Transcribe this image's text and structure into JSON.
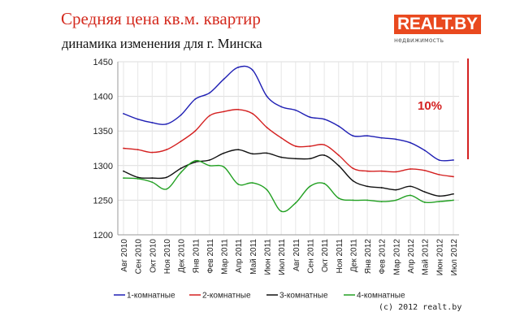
{
  "header": {
    "title": "Средняя цена кв.м. квартир",
    "subtitle": "динамика изменения для г. Минска"
  },
  "logo": {
    "name": "REALT.BY",
    "tagline": "недвижимость",
    "color": "#e9491f"
  },
  "copyright": "(c) 2012 realt.by",
  "chart_data": {
    "type": "line",
    "ylim": [
      1200,
      1450
    ],
    "yticks": [
      1200,
      1250,
      1300,
      1350,
      1400,
      1450
    ],
    "grid": true,
    "legend_position": "bottom",
    "x": [
      "Авг 2010",
      "Сен 2010",
      "Окт 2010",
      "Ноя 2010",
      "Дек 2010",
      "Янв 2011",
      "Фев 2011",
      "Мар 2011",
      "Апр 2011",
      "Май 2011",
      "Июн 2011",
      "Июл 2011",
      "Авг 2011",
      "Сен 2011",
      "Окт 2011",
      "Ноя 2011",
      "Дек 2011",
      "Янв 2012",
      "Фев 2012",
      "Мар 2012",
      "Апр 2012",
      "Май 2012",
      "Июн 2012",
      "Июл 2012"
    ],
    "series": [
      {
        "name": "1-комнатные",
        "color": "#1f1fb4",
        "values": [
          1375,
          1367,
          1362,
          1360,
          1373,
          1396,
          1405,
          1425,
          1442,
          1438,
          1400,
          1385,
          1380,
          1370,
          1367,
          1357,
          1343,
          1343,
          1340,
          1338,
          1333,
          1322,
          1308,
          1308
        ]
      },
      {
        "name": "2-комнатные",
        "color": "#d42020",
        "values": [
          1325,
          1323,
          1319,
          1323,
          1335,
          1350,
          1372,
          1378,
          1381,
          1375,
          1355,
          1340,
          1328,
          1328,
          1330,
          1315,
          1296,
          1292,
          1292,
          1291,
          1295,
          1293,
          1287,
          1284
        ]
      },
      {
        "name": "3-комнатные",
        "color": "#111111",
        "values": [
          1292,
          1283,
          1282,
          1283,
          1296,
          1305,
          1308,
          1318,
          1323,
          1317,
          1318,
          1312,
          1310,
          1310,
          1315,
          1300,
          1278,
          1270,
          1268,
          1265,
          1270,
          1262,
          1256,
          1259
        ]
      },
      {
        "name": "4-комнатные",
        "color": "#22a022",
        "values": [
          1282,
          1281,
          1276,
          1266,
          1290,
          1307,
          1300,
          1298,
          1273,
          1275,
          1265,
          1234,
          1246,
          1270,
          1274,
          1253,
          1250,
          1250,
          1248,
          1250,
          1257,
          1247,
          1248,
          1250
        ]
      }
    ],
    "annotation": {
      "text": "10%",
      "color": "#d42020"
    }
  }
}
